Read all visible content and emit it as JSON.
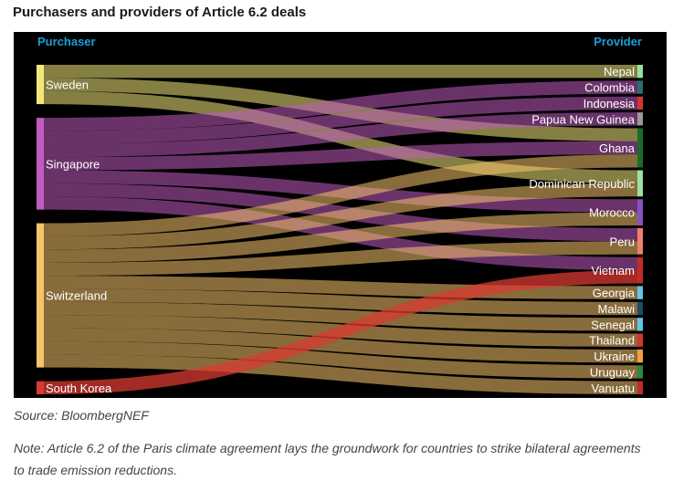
{
  "page": {
    "title": "Purchasers and providers of Article 6.2 deals",
    "source": "Source: BloombergNEF",
    "note": "Note: Article 6.2 of the Paris climate agreement lays the groundwork for countries to strike bilateral agreements to trade emission reductions."
  },
  "chart_data": {
    "type": "sankey",
    "left_header": "Purchaser",
    "right_header": "Provider",
    "header_color": "#1a9fd6",
    "purchasers": [
      {
        "name": "Sweden",
        "color": "#f2e87a"
      },
      {
        "name": "Singapore",
        "color": "#c05cc0"
      },
      {
        "name": "Switzerland",
        "color": "#f7c46b"
      },
      {
        "name": "South Korea",
        "color": "#d93a32"
      }
    ],
    "providers": [
      {
        "name": "Nepal",
        "color": "#98e0a0"
      },
      {
        "name": "Colombia",
        "color": "#2d6b78"
      },
      {
        "name": "Indonesia",
        "color": "#d9322e"
      },
      {
        "name": "Papua New Guinea",
        "color": "#999999"
      },
      {
        "name": "Ghana",
        "color": "#1b6b2a"
      },
      {
        "name": "Dominican Republic",
        "color": "#9fe0a0"
      },
      {
        "name": "Morocco",
        "color": "#8a50c0"
      },
      {
        "name": "Peru",
        "color": "#f08070"
      },
      {
        "name": "Vietnam",
        "color": "#c42a2a"
      },
      {
        "name": "Georgia",
        "color": "#5ec8e8"
      },
      {
        "name": "Malawi",
        "color": "#1f4a6b"
      },
      {
        "name": "Senegal",
        "color": "#5ec8e8"
      },
      {
        "name": "Thailand",
        "color": "#d9322e"
      },
      {
        "name": "Ukraine",
        "color": "#f2a040"
      },
      {
        "name": "Uruguay",
        "color": "#2a8a3a"
      },
      {
        "name": "Vanuatu",
        "color": "#c42a2a"
      }
    ],
    "flows": [
      {
        "source": "Sweden",
        "target": "Nepal",
        "value": 1
      },
      {
        "source": "Sweden",
        "target": "Ghana",
        "value": 1
      },
      {
        "source": "Sweden",
        "target": "Dominican Republic",
        "value": 1
      },
      {
        "source": "Singapore",
        "target": "Colombia",
        "value": 1
      },
      {
        "source": "Singapore",
        "target": "Indonesia",
        "value": 1
      },
      {
        "source": "Singapore",
        "target": "Papua New Guinea",
        "value": 1
      },
      {
        "source": "Singapore",
        "target": "Ghana",
        "value": 1
      },
      {
        "source": "Singapore",
        "target": "Morocco",
        "value": 1
      },
      {
        "source": "Singapore",
        "target": "Peru",
        "value": 1
      },
      {
        "source": "Singapore",
        "target": "Vietnam",
        "value": 1
      },
      {
        "source": "Switzerland",
        "target": "Ghana",
        "value": 1
      },
      {
        "source": "Switzerland",
        "target": "Dominican Republic",
        "value": 1
      },
      {
        "source": "Switzerland",
        "target": "Morocco",
        "value": 1
      },
      {
        "source": "Switzerland",
        "target": "Peru",
        "value": 1
      },
      {
        "source": "Switzerland",
        "target": "Georgia",
        "value": 1
      },
      {
        "source": "Switzerland",
        "target": "Malawi",
        "value": 1
      },
      {
        "source": "Switzerland",
        "target": "Senegal",
        "value": 1
      },
      {
        "source": "Switzerland",
        "target": "Thailand",
        "value": 1
      },
      {
        "source": "Switzerland",
        "target": "Ukraine",
        "value": 1
      },
      {
        "source": "Switzerland",
        "target": "Uruguay",
        "value": 1
      },
      {
        "source": "Switzerland",
        "target": "Vanuatu",
        "value": 1
      },
      {
        "source": "South Korea",
        "target": "Vietnam",
        "value": 1
      }
    ]
  }
}
